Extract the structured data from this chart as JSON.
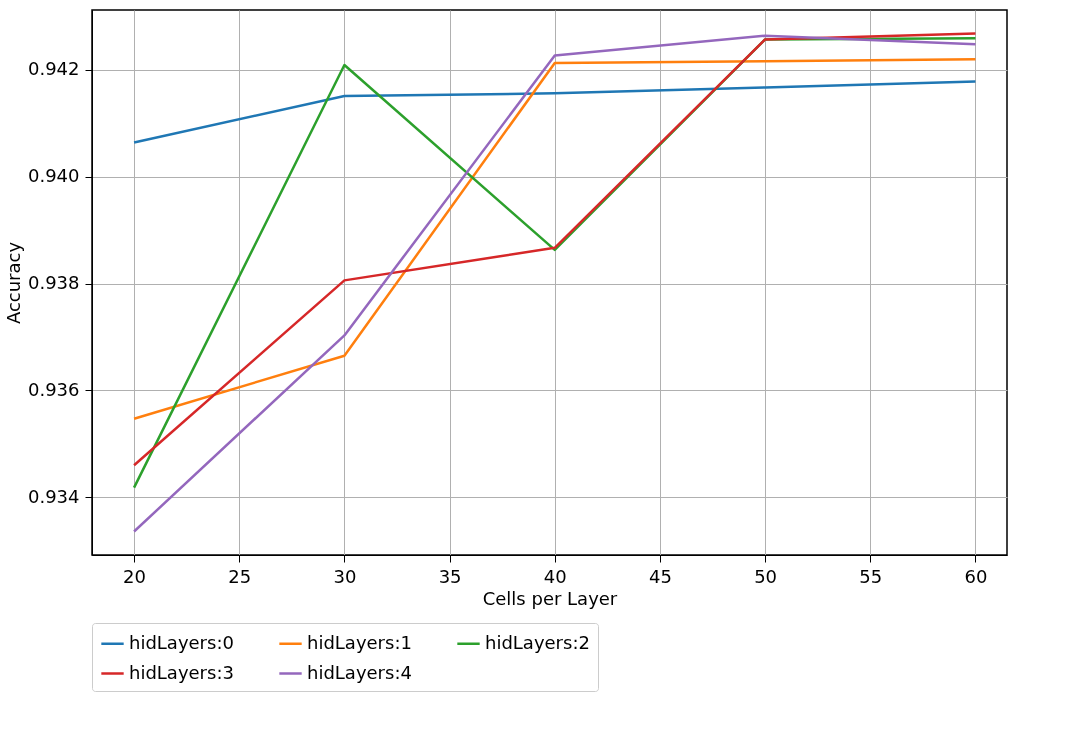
{
  "chart_data": {
    "type": "line",
    "xlabel": "Cells per Layer",
    "ylabel": "Accuracy",
    "x": [
      20,
      30,
      40,
      50,
      60
    ],
    "series": [
      {
        "name": "hidLayers:0",
        "color": "#1f77b4",
        "values": [
          0.94064,
          0.94151,
          0.94156,
          0.94167,
          0.94178
        ]
      },
      {
        "name": "hidLayers:1",
        "color": "#ff7f0e",
        "values": [
          0.93547,
          0.93665,
          0.94213,
          0.94216,
          0.9422
        ]
      },
      {
        "name": "hidLayers:2",
        "color": "#2ca02c",
        "values": [
          0.93418,
          0.94209,
          0.93863,
          0.94257,
          0.94259
        ]
      },
      {
        "name": "hidLayers:3",
        "color": "#d62728",
        "values": [
          0.9346,
          0.93806,
          0.93867,
          0.94257,
          0.94268
        ]
      },
      {
        "name": "hidLayers:4",
        "color": "#9467bd",
        "values": [
          0.93336,
          0.93703,
          0.94227,
          0.94264,
          0.94248
        ]
      }
    ],
    "xlim": [
      18,
      61.5
    ],
    "xticks": [
      20,
      25,
      30,
      35,
      40,
      45,
      50,
      55,
      60
    ],
    "ylim": [
      0.93292,
      0.94312
    ],
    "yticks": [
      0.934,
      0.936,
      0.938,
      {
        "value": 0.94,
        "label": "0.940"
      },
      0.942
    ],
    "grid": true,
    "legend": "bottom",
    "line_style": "solid",
    "marker": "none"
  }
}
